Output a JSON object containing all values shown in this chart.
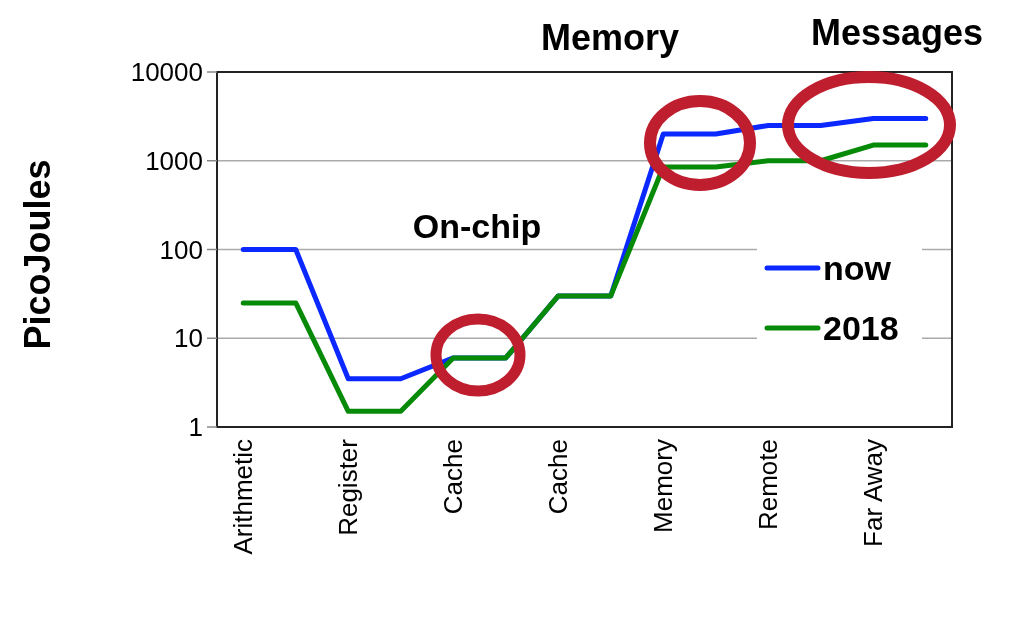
{
  "chart_data": {
    "type": "line",
    "ylabel": "PicoJoules",
    "categories": [
      "Arithmetic",
      null,
      "Register",
      null,
      "Cache",
      null,
      "Cache",
      null,
      "Memory",
      null,
      "Remote",
      null,
      "Far Away",
      null
    ],
    "series": [
      {
        "name": "now",
        "color": "#0a28ff",
        "values": [
          100,
          100,
          3.5,
          3.5,
          6,
          6,
          30,
          30,
          2000,
          2000,
          2500,
          2500,
          3000,
          3000
        ]
      },
      {
        "name": "2018",
        "color": "#078a07",
        "values": [
          25,
          25,
          1.5,
          1.5,
          6,
          6,
          30,
          30,
          850,
          850,
          1000,
          1000,
          1500,
          1500
        ]
      }
    ],
    "log": true,
    "ylim": [
      1,
      10000
    ],
    "yticks": [
      1,
      10,
      100,
      1000,
      10000
    ],
    "grid": "y",
    "legend": "right",
    "marker": "none",
    "line_style": "solid",
    "annotations": [
      "On-chip",
      "Memory",
      "Messages"
    ]
  }
}
